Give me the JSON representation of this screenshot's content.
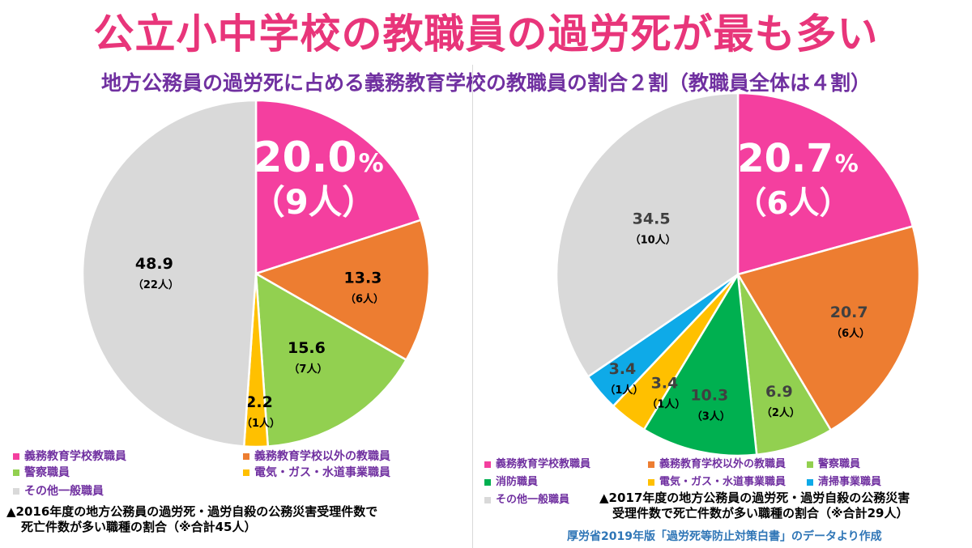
{
  "title": "公立小中学校の教職員の過労死が最も多い",
  "subtitle": "地方公務員の過労死に占める義務教育学校の教職員の割合２割（教職員全体は４割）",
  "source": "厚労省2019年版「過労死等防止対策白書」のデータより作成",
  "chart_data": [
    {
      "type": "pie",
      "unit": "%",
      "slices": [
        {
          "name": "義務教育学校教職員",
          "value": 20.0,
          "label": "20.0",
          "count": "（9人）",
          "color": "#f43f9f"
        },
        {
          "name": "義務教育学校以外の教職員",
          "value": 13.3,
          "label": "13.3",
          "count": "（6人）",
          "color": "#ed7d31"
        },
        {
          "name": "警察職員",
          "value": 15.6,
          "label": "15.6",
          "count": "（7人）",
          "color": "#92d050"
        },
        {
          "name": "電気・ガス・水道事業職員",
          "value": 2.2,
          "label": "2.2",
          "count": "（1人）",
          "color": "#ffc000"
        },
        {
          "name": "その他一般職員",
          "value": 48.9,
          "label": "48.9",
          "count": "（22人）",
          "color": "#d9d9d9"
        }
      ],
      "note": [
        "▲2016年度の地方公務員の過労死・過労自殺の公務災害受理件数で",
        "死亡件数が多い職種の割合（※合計45人）"
      ]
    },
    {
      "type": "pie",
      "unit": "%",
      "slices": [
        {
          "name": "義務教育学校教職員",
          "value": 20.7,
          "label": "20.7",
          "count": "（6人）",
          "color": "#f43f9f"
        },
        {
          "name": "義務教育学校以外の教職員",
          "value": 20.7,
          "label": "20.7",
          "count": "（6人）",
          "color": "#ed7d31"
        },
        {
          "name": "警察職員",
          "value": 6.9,
          "label": "6.9",
          "count": "（2人）",
          "color": "#92d050"
        },
        {
          "name": "消防職員",
          "value": 10.3,
          "label": "10.3",
          "count": "（3人）",
          "color": "#00b050"
        },
        {
          "name": "電気・ガス・水道事業職員",
          "value": 3.4,
          "label": "3.4",
          "count": "（1人）",
          "color": "#ffc000"
        },
        {
          "name": "清掃事業職員",
          "value": 3.4,
          "label": "3.4",
          "count": "（1人）",
          "color": "#0eaae8"
        },
        {
          "name": "その他一般職員",
          "value": 34.5,
          "label": "34.5",
          "count": "（10人）",
          "color": "#d9d9d9"
        }
      ],
      "note": [
        "▲2017年度の地方公務員の過労死・過労自殺の公務災害",
        "受理件数で死亡件数が多い職種の割合（※合計29人）"
      ]
    }
  ]
}
